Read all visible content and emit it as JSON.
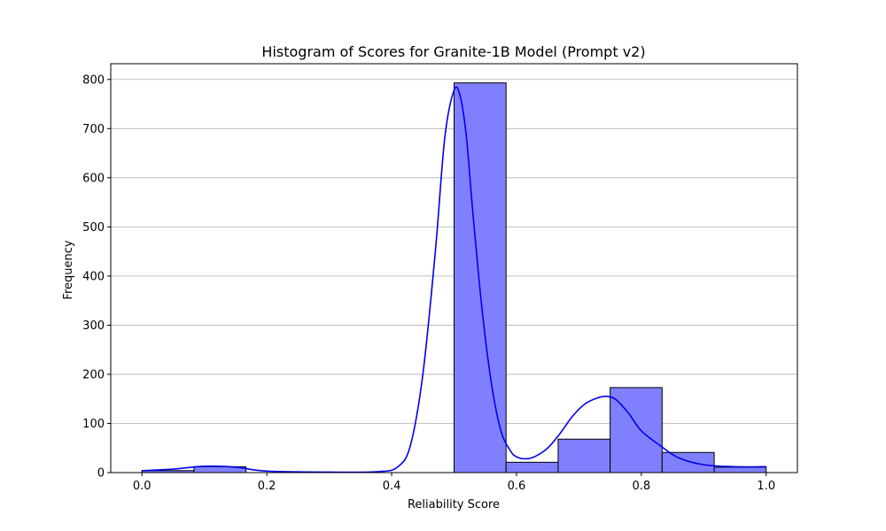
{
  "chart_data": {
    "type": "bar",
    "title": "Histogram of Scores for Granite-1B Model (Prompt v2)",
    "xlabel": "Reliability Score",
    "ylabel": "Frequency",
    "xlim": [
      -0.05,
      1.05
    ],
    "ylim": [
      0,
      832
    ],
    "grid": "horizontal",
    "xticks": [
      0.0,
      0.2,
      0.4,
      0.6,
      0.8,
      1.0
    ],
    "xtick_labels": [
      "0.0",
      "0.2",
      "0.4",
      "0.6",
      "0.8",
      "1.0"
    ],
    "yticks": [
      0,
      100,
      200,
      300,
      400,
      500,
      600,
      700,
      800
    ],
    "ytick_labels": [
      "0",
      "100",
      "200",
      "300",
      "400",
      "500",
      "600",
      "700",
      "800"
    ],
    "bin_edges": [
      0.0,
      0.0833,
      0.1667,
      0.25,
      0.3333,
      0.4167,
      0.5,
      0.5833,
      0.6667,
      0.75,
      0.8333,
      0.9167,
      1.0
    ],
    "counts": [
      4,
      12,
      0,
      0,
      0,
      0,
      793,
      21,
      68,
      173,
      41,
      11
    ],
    "bar_color": "#8080ff",
    "bar_edge_color": "#000000",
    "kde": {
      "color": "#0000ee",
      "x": [
        0.0,
        0.05,
        0.1,
        0.15,
        0.2,
        0.3,
        0.38,
        0.41,
        0.43,
        0.45,
        0.47,
        0.485,
        0.5,
        0.51,
        0.52,
        0.53,
        0.545,
        0.56,
        0.575,
        0.59,
        0.6,
        0.615,
        0.63,
        0.65,
        0.67,
        0.69,
        0.71,
        0.73,
        0.745,
        0.76,
        0.78,
        0.8,
        0.83,
        0.86,
        0.9,
        0.95,
        1.0
      ],
      "y": [
        4,
        7,
        13,
        11,
        3,
        1,
        2,
        12,
        55,
        200,
        450,
        680,
        778,
        765,
        680,
        530,
        330,
        180,
        85,
        45,
        32,
        28,
        33,
        50,
        80,
        115,
        140,
        152,
        155,
        148,
        120,
        85,
        55,
        30,
        16,
        12,
        12
      ]
    }
  }
}
